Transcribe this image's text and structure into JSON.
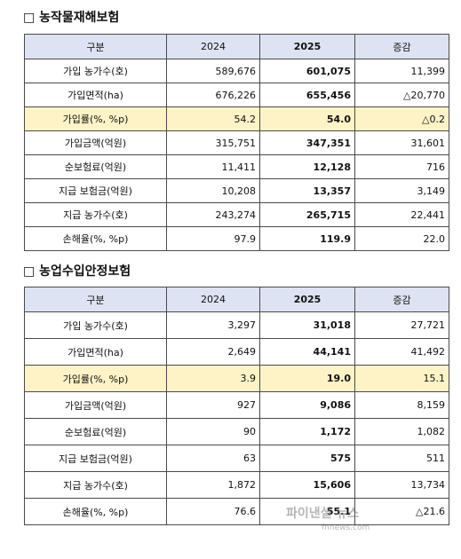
{
  "sections": [
    {
      "title": "□ 농작물재해보험",
      "header": [
        "구분",
        "2024",
        "2025",
        "증감"
      ],
      "rows": [
        {
          "label": "가입 농가수(호)",
          "v2024": "589,676",
          "v2025": "601,075",
          "change": "11,399",
          "highlight": false
        },
        {
          "label": "가입면적(ha)",
          "v2024": "676,226",
          "v2025": "655,456",
          "change": "△20,770",
          "highlight": false
        },
        {
          "label": "가입률(%, %p)",
          "v2024": "54.2",
          "v2025": "54.0",
          "change": "△0.2",
          "highlight": true
        },
        {
          "label": "가입금액(억원)",
          "v2024": "315,751",
          "v2025": "347,351",
          "change": "31,601",
          "highlight": false
        },
        {
          "label": "순보험료(억원)",
          "v2024": "11,411",
          "v2025": "12,128",
          "change": "716",
          "highlight": false
        },
        {
          "label": "지급 보험금(억원)",
          "v2024": "10,208",
          "v2025": "13,357",
          "change": "3,149",
          "highlight": false
        },
        {
          "label": "지급 농가수(호)",
          "v2024": "243,274",
          "v2025": "265,715",
          "change": "22,441",
          "highlight": false
        },
        {
          "label": "손해율(%, %p)",
          "v2024": "97.9",
          "v2025": "119.9",
          "change": "22.0",
          "highlight": false
        }
      ]
    },
    {
      "title": "□ 농업수입안정보험",
      "header": [
        "구분",
        "2024",
        "2025",
        "증감"
      ],
      "rows": [
        {
          "label": "가입 농가수(호)",
          "v2024": "3,297",
          "v2025": "31,018",
          "change": "27,721",
          "highlight": false
        },
        {
          "label": "가입면적(ha)",
          "v2024": "2,649",
          "v2025": "44,141",
          "change": "41,492",
          "highlight": false
        },
        {
          "label": "가입률(%, %p)",
          "v2024": "3.9",
          "v2025": "19.0",
          "change": "15.1",
          "highlight": true
        },
        {
          "label": "가입금액(억원)",
          "v2024": "927",
          "v2025": "9,086",
          "change": "8,159",
          "highlight": false
        },
        {
          "label": "순보험료(억원)",
          "v2024": "90",
          "v2025": "1,172",
          "change": "1,082",
          "highlight": false
        },
        {
          "label": "지급 보험금(억원)",
          "v2024": "63",
          "v2025": "575",
          "change": "511",
          "highlight": false
        },
        {
          "label": "지급 농가수(호)",
          "v2024": "1,872",
          "v2025": "15,606",
          "change": "13,734",
          "highlight": false
        },
        {
          "label": "손해율(%, %p)",
          "v2024": "76.6",
          "v2025": "55.1",
          "change": "△21.6",
          "highlight": false
        }
      ]
    }
  ],
  "watermark": {
    "main": "파이낸셜 뉴스",
    "sub": "fnnews.com"
  }
}
